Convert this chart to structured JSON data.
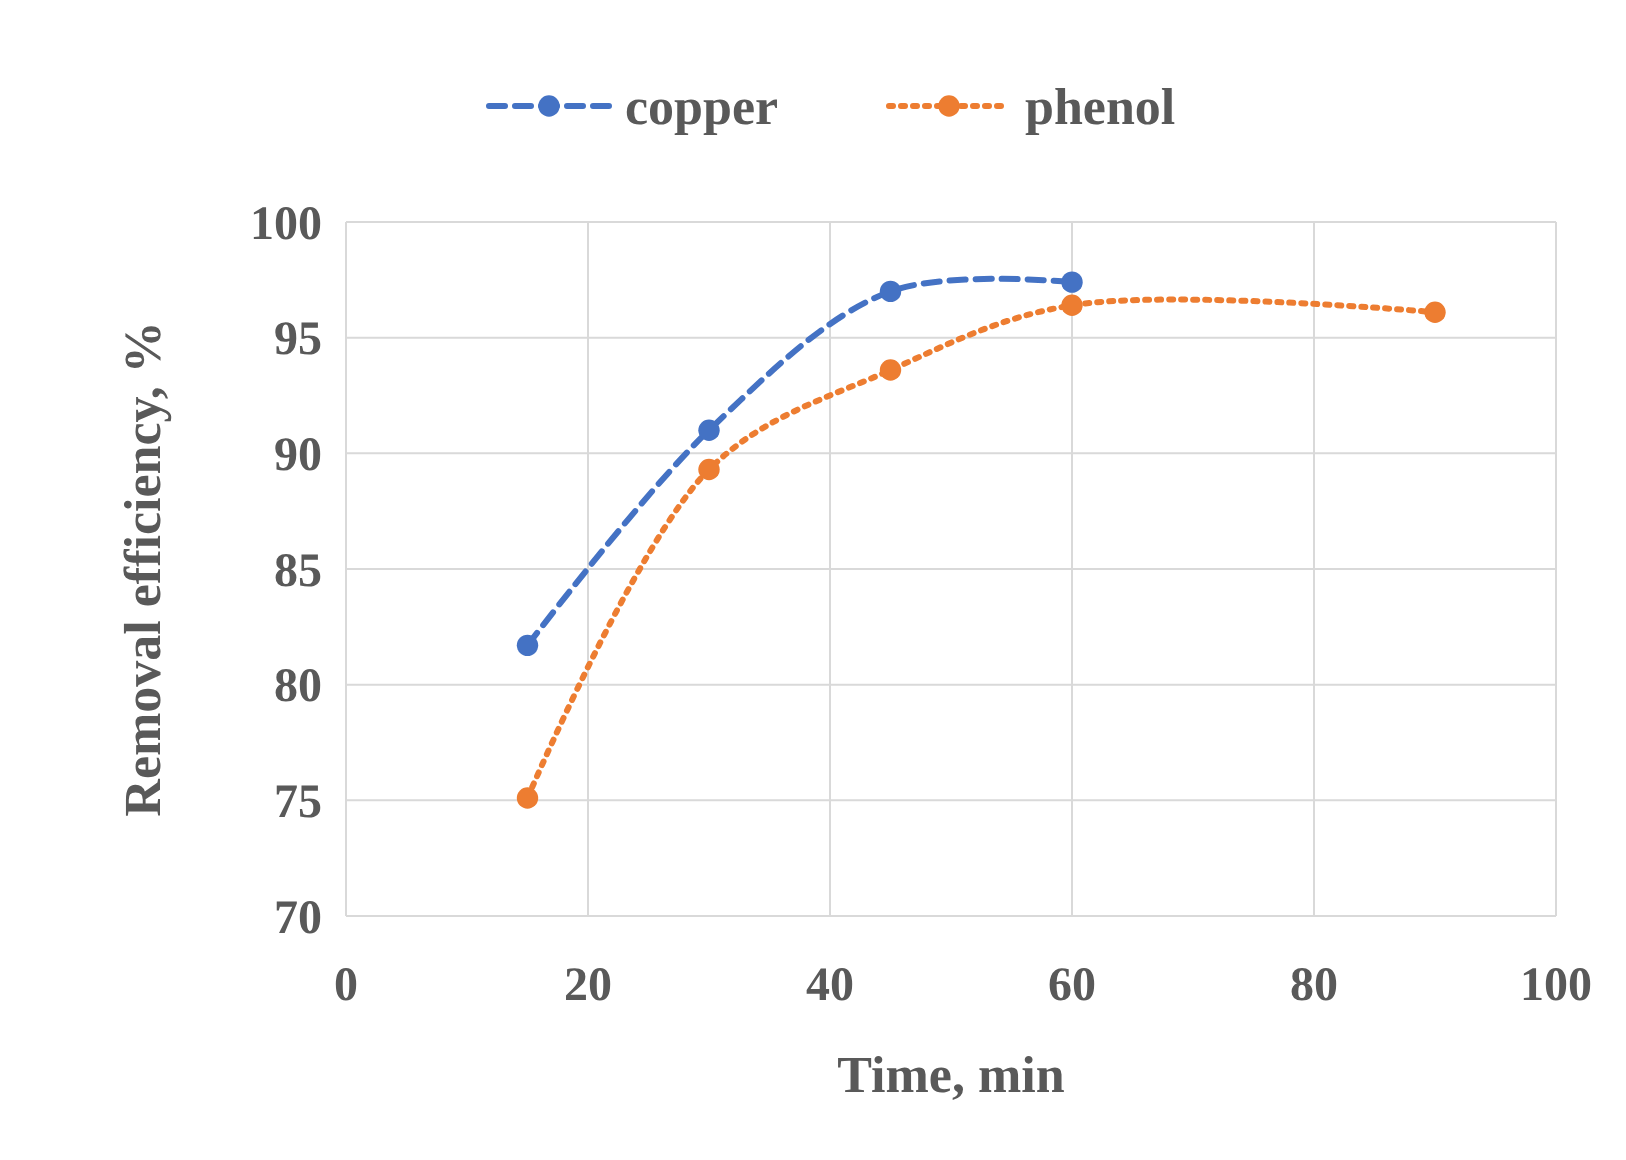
{
  "chart_data": {
    "type": "line",
    "xlabel": "Time, min",
    "ylabel": "Removal efficiency, %",
    "xlim": [
      0,
      100
    ],
    "xticks": [
      0,
      20,
      40,
      60,
      80,
      100
    ],
    "ylim": [
      70,
      100
    ],
    "yticks": [
      70,
      75,
      80,
      85,
      90,
      95,
      100
    ],
    "grid": true,
    "legend": "top",
    "marker": "circle",
    "series": [
      {
        "name": "copper",
        "color": "#4472c4",
        "line_style": "dashed",
        "x": [
          15,
          30,
          45,
          60
        ],
        "values": [
          81.7,
          91.0,
          97.0,
          97.4
        ]
      },
      {
        "name": "phenol",
        "color": "#ed7d31",
        "line_style": "dotted",
        "x": [
          15,
          30,
          45,
          60,
          90
        ],
        "values": [
          75.1,
          89.3,
          93.6,
          96.4,
          96.1
        ]
      }
    ]
  }
}
